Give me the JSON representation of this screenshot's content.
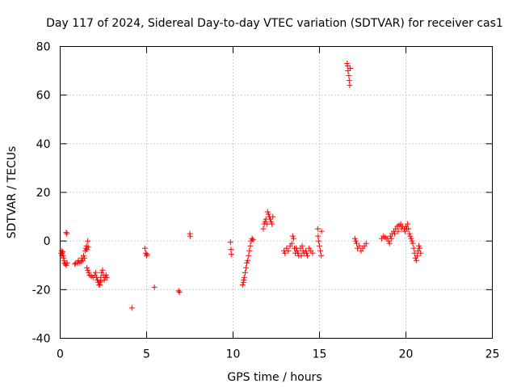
{
  "chart_data": {
    "type": "scatter",
    "title": "Day 117 of 2024, Sidereal Day-to-day VTEC variation (SDTVAR) for receiver cas1",
    "xlabel": "GPS time / hours",
    "ylabel": "SDTVAR / TECUs",
    "xlim": [
      0,
      25
    ],
    "ylim": [
      -40,
      80
    ],
    "xticks": [
      0,
      5,
      10,
      15,
      20,
      25
    ],
    "yticks": [
      -40,
      -20,
      0,
      20,
      40,
      60,
      80
    ],
    "xtick_labels": [
      "0",
      "5",
      "10",
      "15",
      "20",
      "25"
    ],
    "ytick_labels": [
      "-40",
      "-20",
      "0",
      "20",
      "40",
      "60",
      "80"
    ],
    "grid": true,
    "marker": "+",
    "color": "#ff0000",
    "series": [
      {
        "name": "SDTVAR",
        "points": [
          [
            0.05,
            -5
          ],
          [
            0.08,
            -4
          ],
          [
            0.1,
            -6
          ],
          [
            0.12,
            -5
          ],
          [
            0.15,
            -4.5
          ],
          [
            0.18,
            -6
          ],
          [
            0.2,
            -7
          ],
          [
            0.22,
            -8
          ],
          [
            0.25,
            -9
          ],
          [
            0.3,
            -9.5
          ],
          [
            0.35,
            -10
          ],
          [
            0.4,
            -9
          ],
          [
            0.35,
            3.5
          ],
          [
            0.38,
            3
          ],
          [
            0.85,
            -9.5
          ],
          [
            0.9,
            -9
          ],
          [
            1.0,
            -9
          ],
          [
            1.05,
            -8
          ],
          [
            1.1,
            -9
          ],
          [
            1.2,
            -8.5
          ],
          [
            1.25,
            -7
          ],
          [
            1.3,
            -8
          ],
          [
            1.35,
            -6
          ],
          [
            1.4,
            -7
          ],
          [
            1.45,
            -4
          ],
          [
            1.5,
            -3
          ],
          [
            1.52,
            -2
          ],
          [
            1.55,
            -3.5
          ],
          [
            1.6,
            0
          ],
          [
            1.62,
            -2.5
          ],
          [
            1.55,
            -11
          ],
          [
            1.6,
            -12
          ],
          [
            1.65,
            -13
          ],
          [
            1.7,
            -14
          ],
          [
            1.8,
            -14.5
          ],
          [
            1.9,
            -15
          ],
          [
            2.0,
            -14
          ],
          [
            2.05,
            -13
          ],
          [
            2.1,
            -15
          ],
          [
            2.15,
            -16
          ],
          [
            2.2,
            -17
          ],
          [
            2.25,
            -18
          ],
          [
            2.3,
            -17
          ],
          [
            2.35,
            -15
          ],
          [
            2.4,
            -13
          ],
          [
            2.45,
            -12
          ],
          [
            2.5,
            -14
          ],
          [
            2.55,
            -16
          ],
          [
            2.6,
            -15
          ],
          [
            2.65,
            -14
          ],
          [
            2.7,
            -15
          ],
          [
            2.3,
            -18
          ],
          [
            2.35,
            -16.5
          ],
          [
            4.15,
            -27.5
          ],
          [
            4.9,
            -3
          ],
          [
            4.95,
            -5
          ],
          [
            5.0,
            -6
          ],
          [
            5.02,
            -5.5
          ],
          [
            5.45,
            -19
          ],
          [
            6.85,
            -20.5
          ],
          [
            6.9,
            -21
          ],
          [
            7.5,
            3
          ],
          [
            7.52,
            2
          ],
          [
            9.85,
            -0.5
          ],
          [
            9.88,
            -3.5
          ],
          [
            9.9,
            -5.5
          ],
          [
            10.55,
            -18
          ],
          [
            10.6,
            -17
          ],
          [
            10.62,
            -16
          ],
          [
            10.65,
            -15
          ],
          [
            10.7,
            -13
          ],
          [
            10.75,
            -11
          ],
          [
            10.8,
            -9
          ],
          [
            10.85,
            -8
          ],
          [
            10.9,
            -6
          ],
          [
            10.95,
            -4
          ],
          [
            11.0,
            -2
          ],
          [
            11.05,
            0
          ],
          [
            11.1,
            1
          ],
          [
            11.15,
            0.5
          ],
          [
            11.75,
            5
          ],
          [
            11.8,
            7
          ],
          [
            11.85,
            8
          ],
          [
            11.9,
            9
          ],
          [
            11.95,
            7
          ],
          [
            12.0,
            12
          ],
          [
            12.05,
            11
          ],
          [
            12.1,
            10
          ],
          [
            12.15,
            9
          ],
          [
            12.2,
            8
          ],
          [
            12.25,
            7
          ],
          [
            12.3,
            10
          ],
          [
            12.95,
            -4
          ],
          [
            13.0,
            -5
          ],
          [
            13.1,
            -3
          ],
          [
            13.2,
            -4
          ],
          [
            13.3,
            -2
          ],
          [
            13.4,
            -1
          ],
          [
            13.45,
            2
          ],
          [
            13.5,
            1
          ],
          [
            13.55,
            -3
          ],
          [
            13.6,
            -5
          ],
          [
            13.7,
            -4
          ],
          [
            13.8,
            -6
          ],
          [
            13.9,
            -3
          ],
          [
            14.0,
            -2
          ],
          [
            14.1,
            -5
          ],
          [
            14.2,
            -4
          ],
          [
            14.3,
            -6
          ],
          [
            14.4,
            -3
          ],
          [
            14.5,
            -4
          ],
          [
            14.6,
            -5
          ],
          [
            13.65,
            -3
          ],
          [
            13.75,
            -5
          ],
          [
            13.95,
            -6
          ],
          [
            14.05,
            -4
          ],
          [
            14.25,
            -5
          ],
          [
            14.9,
            5
          ],
          [
            14.92,
            2
          ],
          [
            14.95,
            0
          ],
          [
            15.0,
            -2
          ],
          [
            15.05,
            -4
          ],
          [
            15.1,
            -6
          ],
          [
            15.12,
            4
          ],
          [
            16.6,
            73
          ],
          [
            16.62,
            72
          ],
          [
            16.65,
            70
          ],
          [
            16.7,
            68
          ],
          [
            16.72,
            66
          ],
          [
            16.75,
            64
          ],
          [
            16.78,
            71
          ],
          [
            17.05,
            1
          ],
          [
            17.1,
            0
          ],
          [
            17.15,
            -1
          ],
          [
            17.2,
            -3
          ],
          [
            17.3,
            -2
          ],
          [
            17.4,
            -4
          ],
          [
            17.5,
            -3
          ],
          [
            17.6,
            -2
          ],
          [
            17.7,
            -1
          ],
          [
            18.6,
            1
          ],
          [
            18.7,
            2
          ],
          [
            18.8,
            1.5
          ],
          [
            18.9,
            1
          ],
          [
            19.0,
            0
          ],
          [
            19.1,
            2
          ],
          [
            19.2,
            3
          ],
          [
            19.3,
            4
          ],
          [
            19.4,
            5
          ],
          [
            19.5,
            6
          ],
          [
            19.6,
            6.5
          ],
          [
            19.7,
            7
          ],
          [
            19.8,
            6
          ],
          [
            19.9,
            5
          ],
          [
            20.0,
            6
          ],
          [
            20.1,
            7
          ],
          [
            20.15,
            5
          ],
          [
            20.2,
            3
          ],
          [
            20.3,
            1
          ],
          [
            20.4,
            -1
          ],
          [
            20.45,
            -3
          ],
          [
            20.5,
            -5
          ],
          [
            20.55,
            -7
          ],
          [
            20.6,
            -8
          ],
          [
            20.65,
            -6
          ],
          [
            20.7,
            -4
          ],
          [
            20.75,
            -2
          ],
          [
            20.8,
            -3
          ],
          [
            20.85,
            -5
          ],
          [
            19.05,
            -1
          ],
          [
            19.15,
            1
          ],
          [
            19.35,
            3
          ],
          [
            19.55,
            4
          ],
          [
            19.75,
            5
          ],
          [
            19.95,
            4
          ],
          [
            20.05,
            5
          ],
          [
            20.25,
            2
          ],
          [
            20.35,
            0
          ]
        ]
      }
    ]
  }
}
